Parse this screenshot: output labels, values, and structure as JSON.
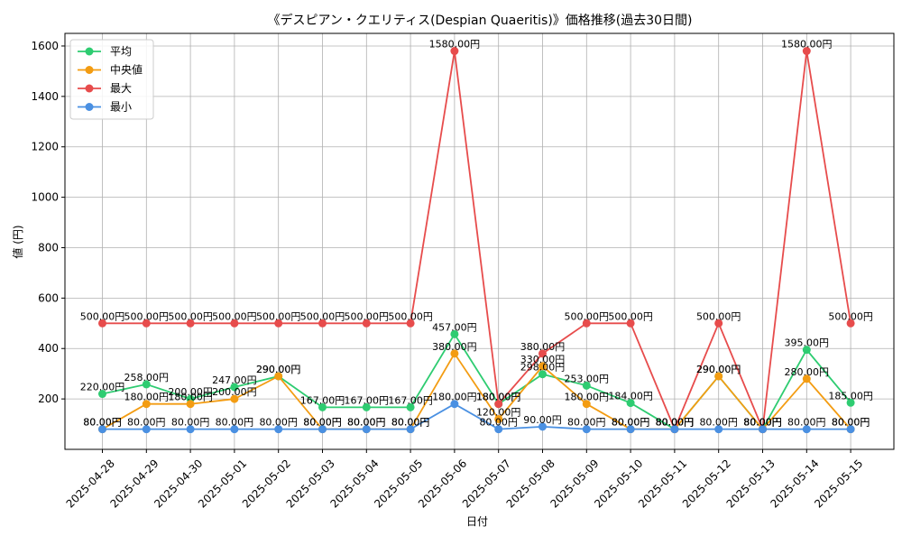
{
  "chart_data": {
    "type": "line",
    "title": "《デスピアン・クエリティス(Despian Quaeritis)》価格推移(過去30日間)",
    "xlabel": "日付",
    "ylabel": "値 (円)",
    "ylim": [
      0,
      1650
    ],
    "yticks": [
      200,
      400,
      600,
      800,
      1000,
      1200,
      1400,
      1600
    ],
    "grid": true,
    "legend_position": "top-left",
    "value_suffix": "円",
    "categories": [
      "2025-04-28",
      "2025-04-29",
      "2025-04-30",
      "2025-05-01",
      "2025-05-02",
      "2025-05-03",
      "2025-05-04",
      "2025-05-05",
      "2025-05-06",
      "2025-05-07",
      "2025-05-08",
      "2025-05-09",
      "2025-05-10",
      "2025-05-11",
      "2025-05-12",
      "2025-05-13",
      "2025-05-14",
      "2025-05-15"
    ],
    "series": [
      {
        "name": "平均",
        "color": "#2ecc71",
        "values": [
          220,
          258,
          200,
          247,
          290,
          167,
          167,
          167,
          457,
          180,
          298,
          253,
          184,
          80,
          290,
          80,
          395,
          185
        ]
      },
      {
        "name": "中央値",
        "color": "#f39c12",
        "values": [
          80,
          180,
          180,
          200,
          290,
          80,
          80,
          80,
          380,
          120,
          330,
          180,
          80,
          80,
          290,
          80,
          280,
          80
        ]
      },
      {
        "name": "最大",
        "color": "#e74c4c",
        "values": [
          500,
          500,
          500,
          500,
          500,
          500,
          500,
          500,
          1580,
          180,
          380,
          500,
          500,
          80,
          500,
          80,
          1580,
          500
        ]
      },
      {
        "name": "最小",
        "color": "#4a90e2",
        "values": [
          80,
          80,
          80,
          80,
          80,
          80,
          80,
          80,
          180,
          80,
          90,
          80,
          80,
          80,
          80,
          80,
          80,
          80
        ]
      }
    ]
  }
}
